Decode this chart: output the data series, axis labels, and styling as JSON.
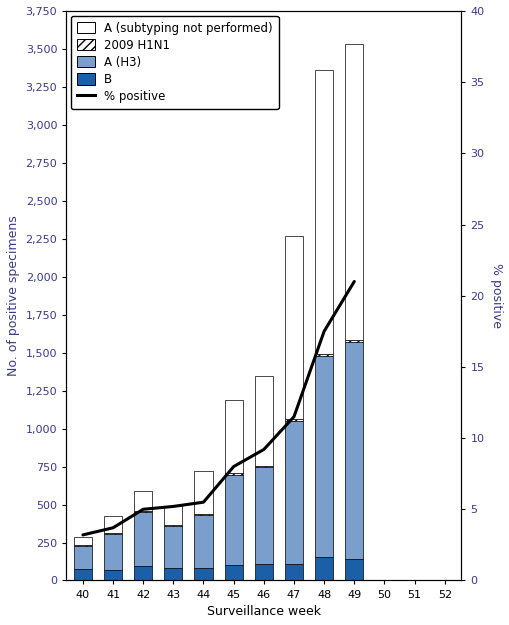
{
  "weeks": [
    40,
    41,
    42,
    43,
    44,
    45,
    46,
    47,
    48,
    49,
    50,
    51,
    52
  ],
  "A_unsubtyped": [
    50,
    115,
    130,
    125,
    280,
    480,
    590,
    1200,
    1870,
    1950,
    0,
    0,
    0
  ],
  "H1N1": [
    5,
    5,
    8,
    8,
    8,
    12,
    12,
    15,
    15,
    15,
    0,
    0,
    0
  ],
  "AH3": [
    155,
    235,
    355,
    280,
    345,
    590,
    635,
    940,
    1320,
    1430,
    0,
    0,
    0
  ],
  "B": [
    75,
    70,
    95,
    80,
    85,
    105,
    110,
    110,
    155,
    140,
    0,
    0,
    0
  ],
  "pct_positive": [
    3.2,
    3.7,
    5.0,
    5.2,
    5.5,
    8.0,
    9.2,
    11.5,
    17.5,
    21.0,
    null,
    null,
    null
  ],
  "ylim_left": [
    0,
    3750
  ],
  "ylim_right": [
    0,
    40
  ],
  "yticks_left": [
    0,
    250,
    500,
    750,
    1000,
    1250,
    1500,
    1750,
    2000,
    2250,
    2500,
    2750,
    3000,
    3250,
    3500,
    3750
  ],
  "yticks_right": [
    0,
    5,
    10,
    15,
    20,
    25,
    30,
    35,
    40
  ],
  "xlabel": "Surveillance week",
  "ylabel_left": "No. of positive specimens",
  "ylabel_right": "% positive",
  "color_unsubtyped": "#ffffff",
  "color_ah3": "#7b9fcc",
  "color_b": "#1a5fa8",
  "color_line": "#000000",
  "bar_edge_color": "#000000",
  "label_color": "#3a3a8c",
  "tick_fontsize": 8,
  "axis_fontsize": 9,
  "legend_fontsize": 8.5,
  "figsize": [
    5.1,
    6.25
  ],
  "dpi": 100
}
